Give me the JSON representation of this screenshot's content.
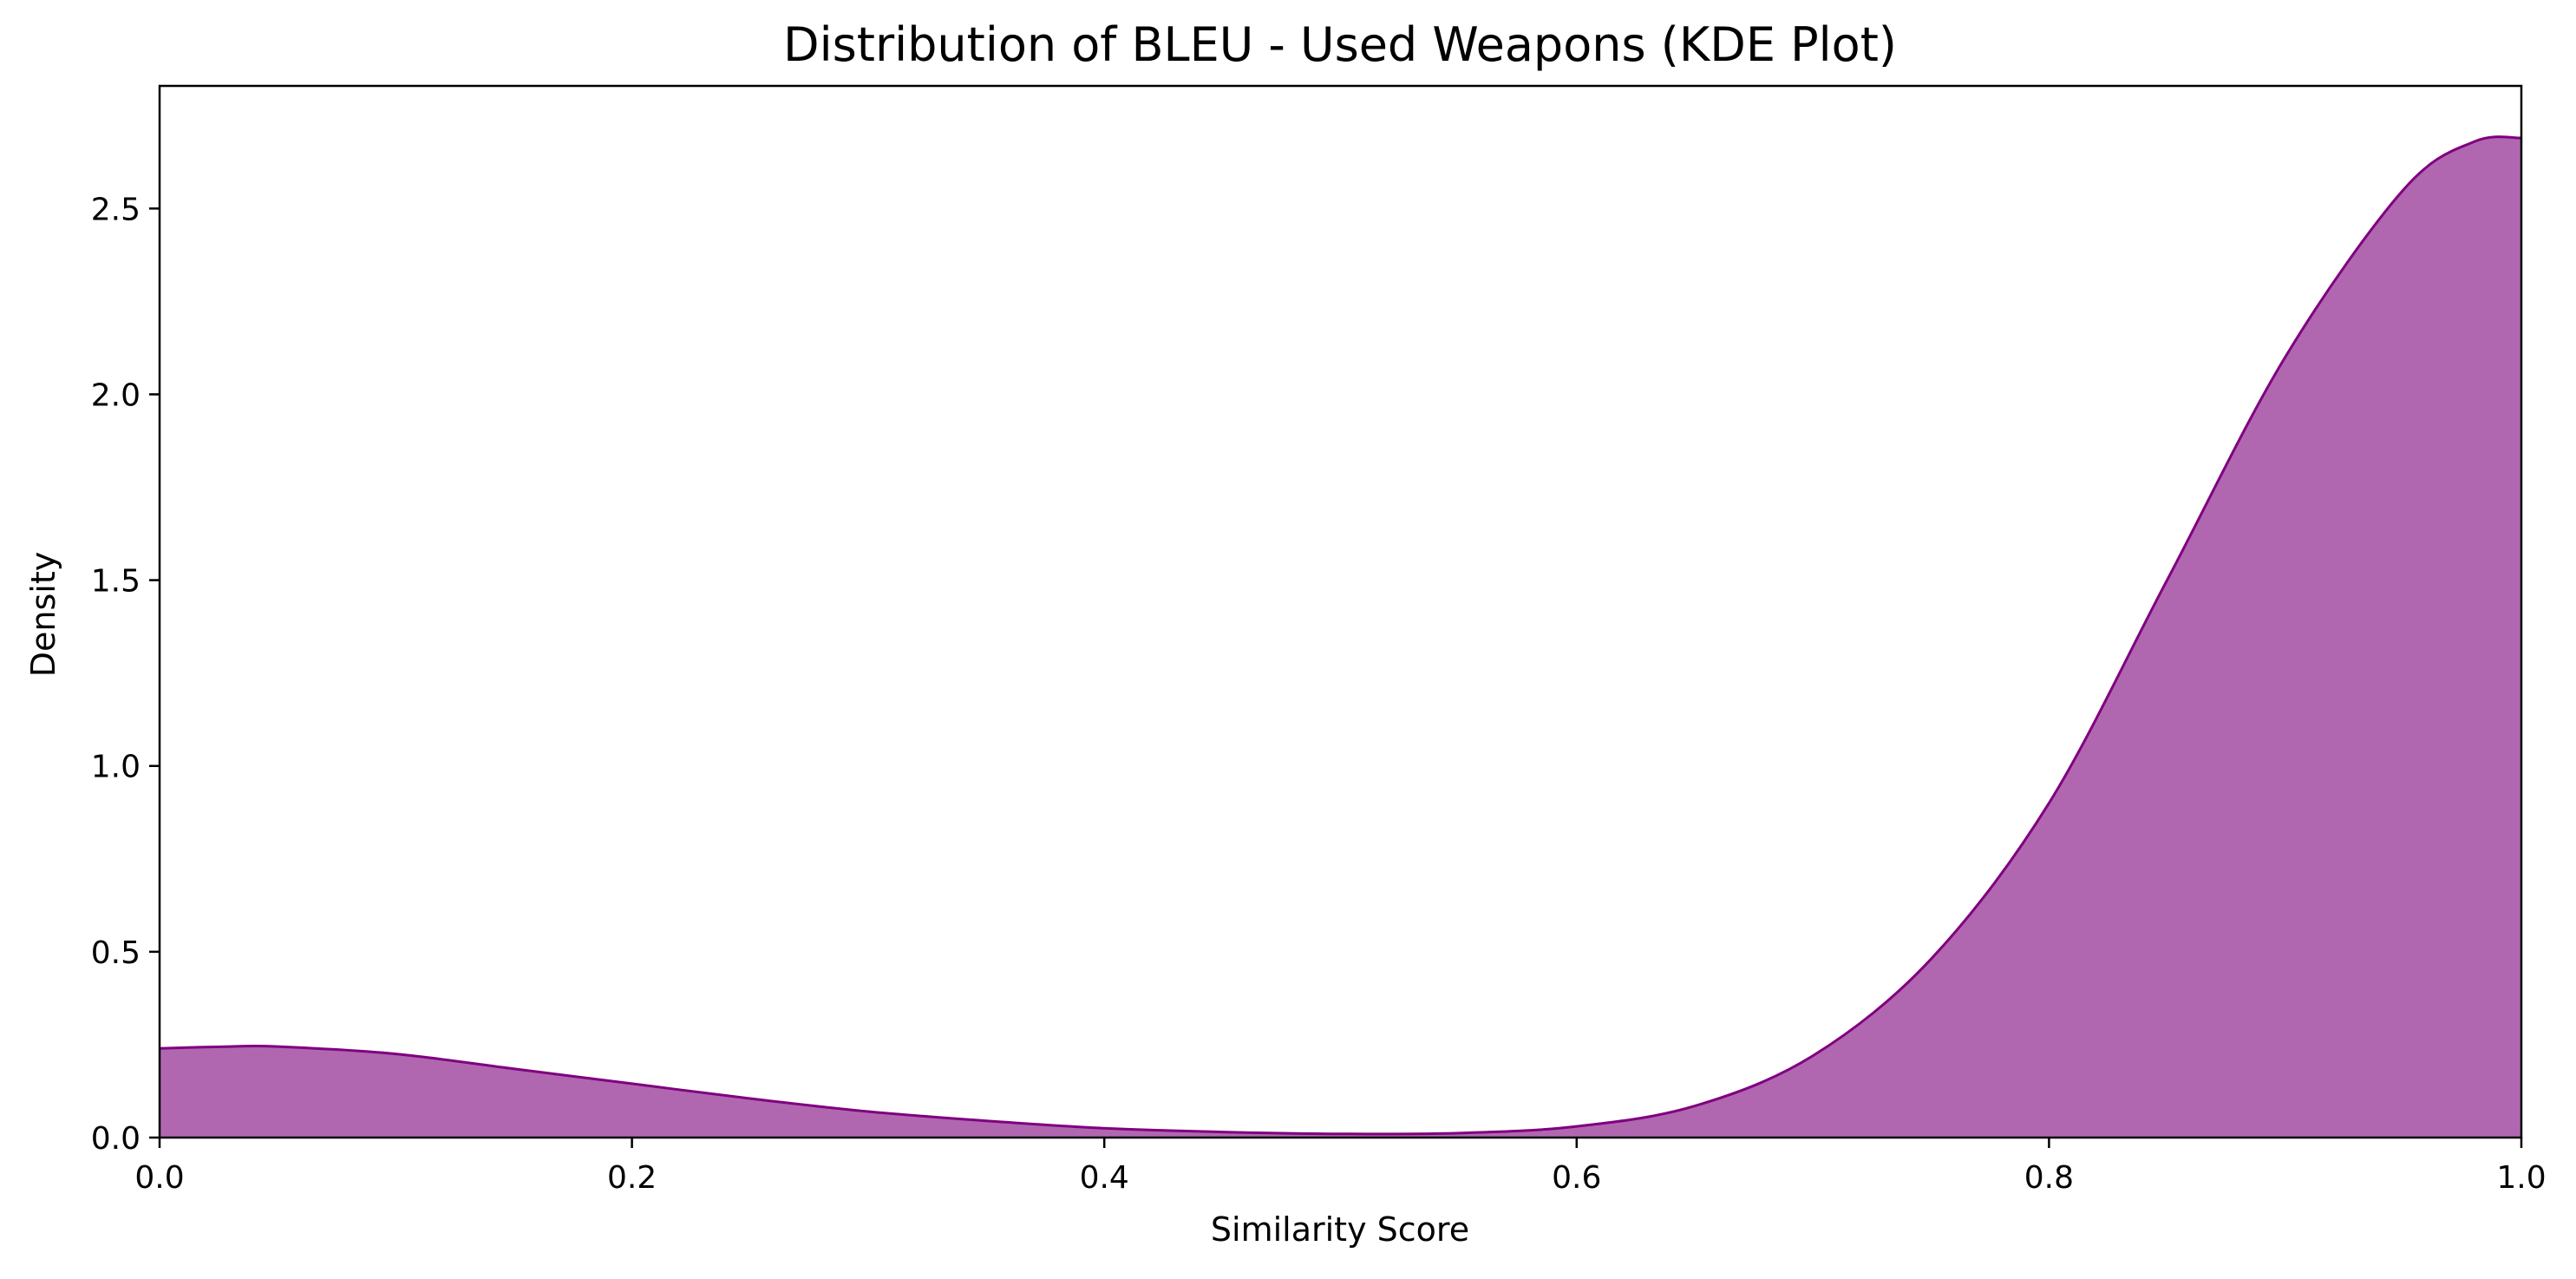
{
  "chart_data": {
    "type": "area",
    "title": "Distribution of BLEU - Used Weapons (KDE Plot)",
    "xlabel": "Similarity Score",
    "ylabel": "Density",
    "xlim": [
      0.0,
      1.0
    ],
    "ylim": [
      0.0,
      2.83
    ],
    "x_ticks": [
      0.0,
      0.2,
      0.4,
      0.6,
      0.8,
      1.0
    ],
    "x_tick_labels": [
      "0.0",
      "0.2",
      "0.4",
      "0.6",
      "0.8",
      "1.0"
    ],
    "y_ticks": [
      0.0,
      0.5,
      1.0,
      1.5,
      2.0,
      2.5
    ],
    "y_tick_labels": [
      "0.0",
      "0.5",
      "1.0",
      "1.5",
      "2.0",
      "2.5"
    ],
    "grid": false,
    "legend": "none",
    "fill_color": "#b067b0",
    "line_color": "#800080",
    "series": [
      {
        "x": [
          0.0,
          0.03,
          0.05,
          0.1,
          0.15,
          0.2,
          0.25,
          0.3,
          0.35,
          0.4,
          0.45,
          0.5,
          0.55,
          0.6,
          0.65,
          0.7,
          0.75,
          0.8,
          0.85,
          0.9,
          0.95,
          0.98,
          1.0
        ],
        "y": [
          0.24,
          0.245,
          0.245,
          0.225,
          0.185,
          0.145,
          0.105,
          0.07,
          0.045,
          0.025,
          0.015,
          0.01,
          0.012,
          0.03,
          0.085,
          0.22,
          0.48,
          0.9,
          1.5,
          2.1,
          2.55,
          2.68,
          2.69
        ]
      }
    ]
  }
}
